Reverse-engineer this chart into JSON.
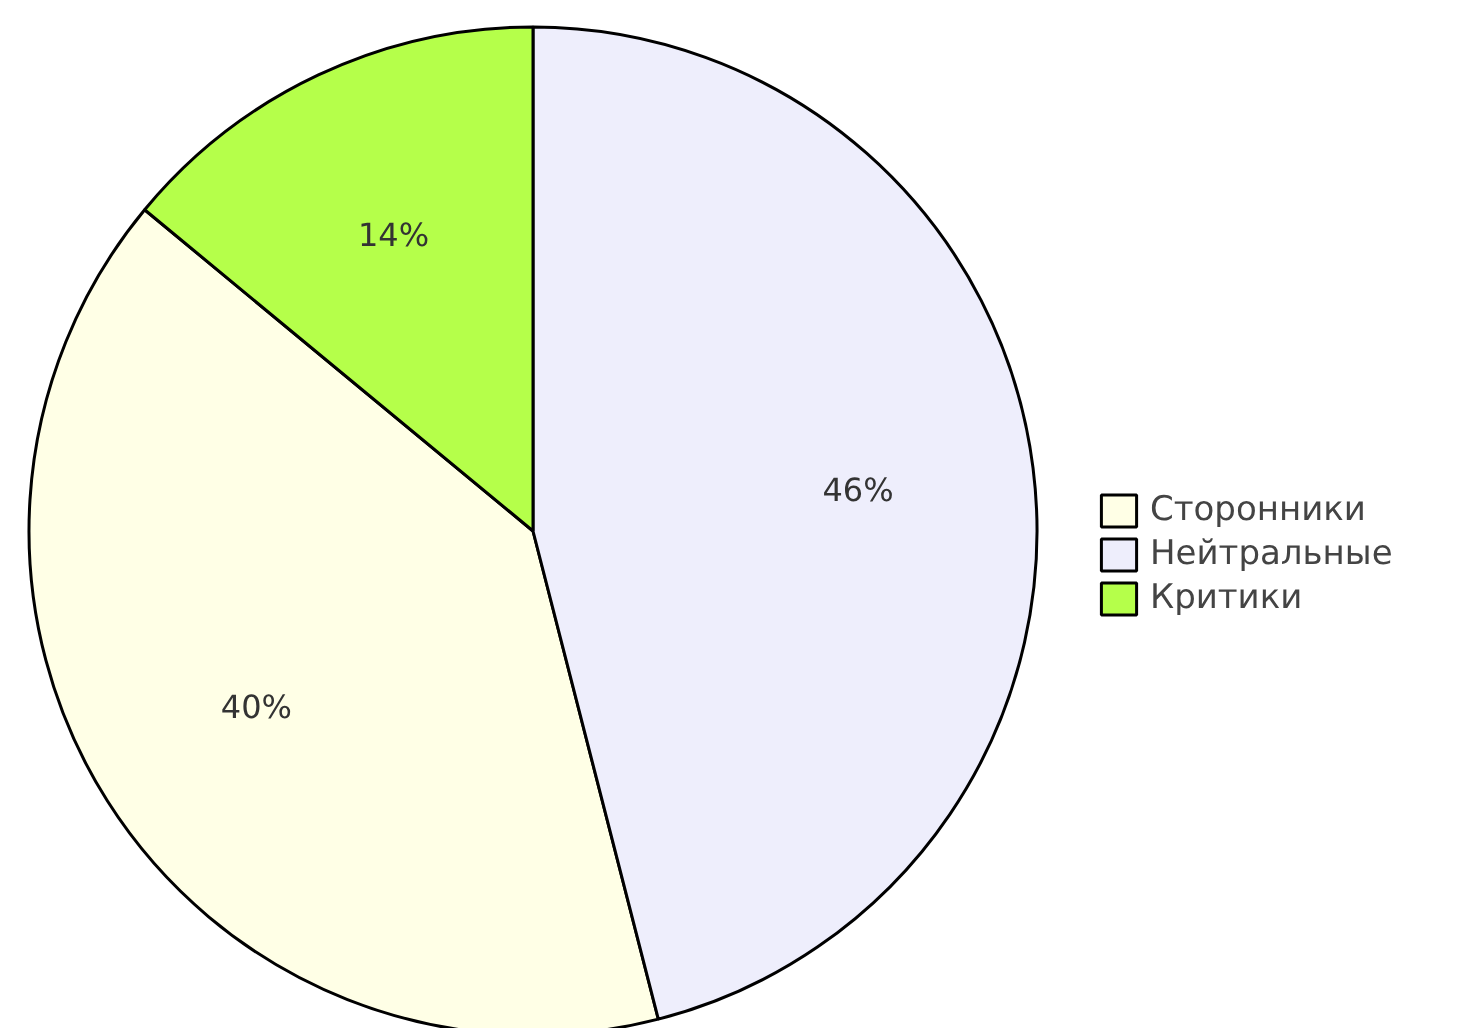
{
  "chart_data": {
    "type": "pie",
    "categories": [
      "Сторонники",
      "Нейтральные",
      "Критики"
    ],
    "values": [
      40,
      46,
      14
    ],
    "value_labels": [
      "40%",
      "46%",
      "14%"
    ],
    "colors": [
      "#ffffe6",
      "#eeeefc",
      "#b5ff4a"
    ],
    "legend": "right"
  }
}
